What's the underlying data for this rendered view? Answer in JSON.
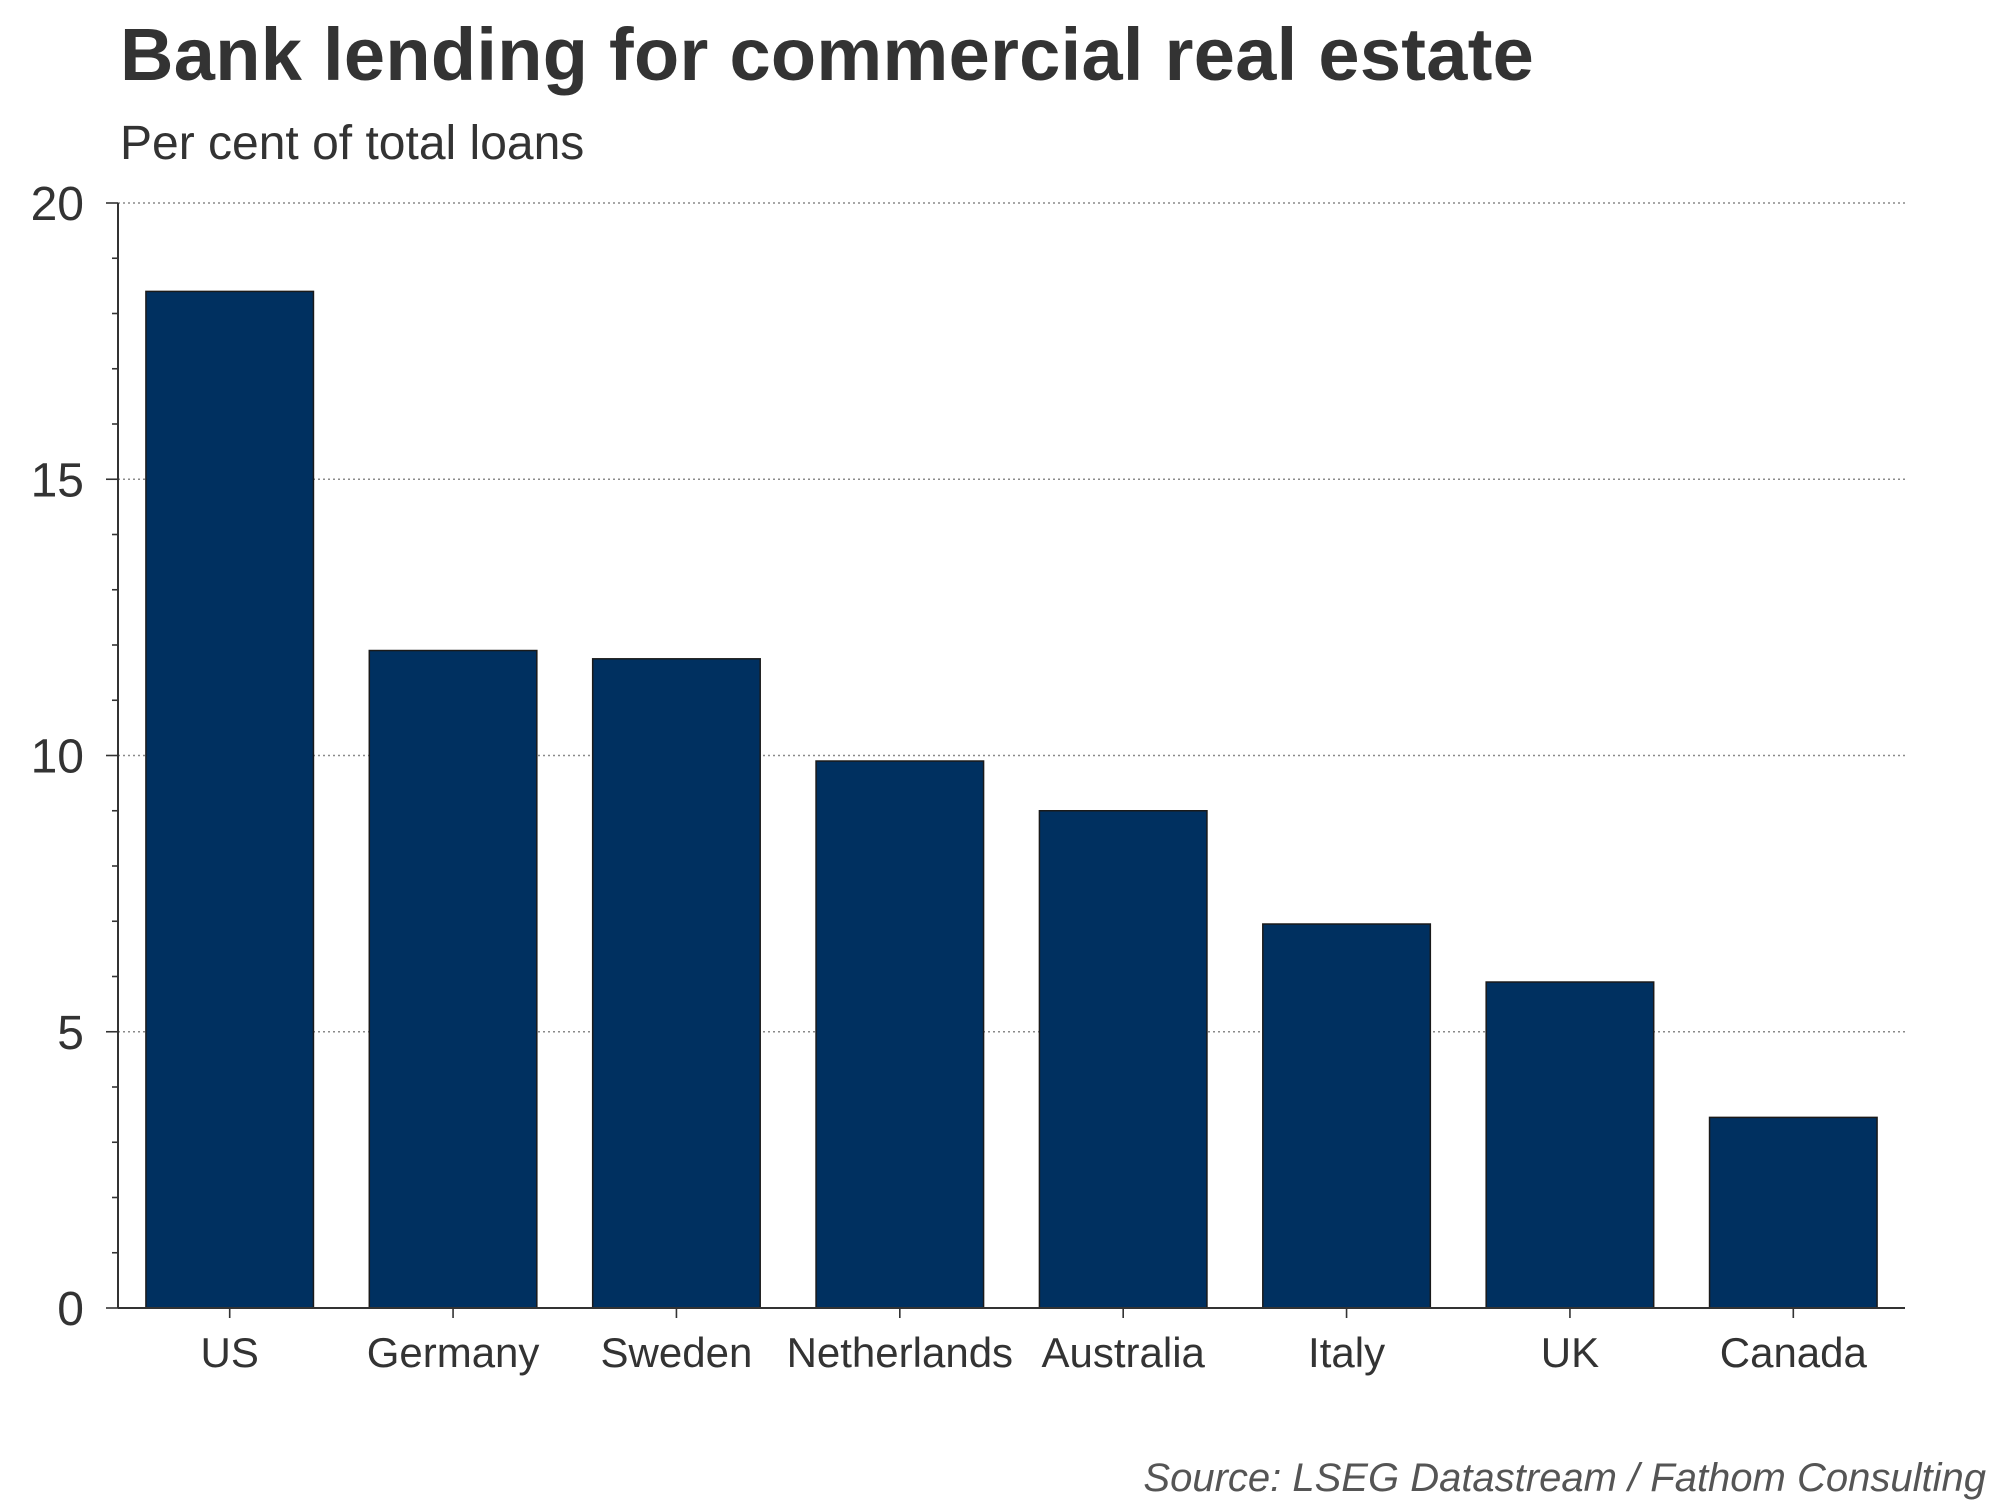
{
  "chart_data": {
    "type": "bar",
    "title": "Bank lending for commercial real estate",
    "subtitle": "Per cent of total loans",
    "source": "Source: LSEG Datastream / Fathom Consulting",
    "categories": [
      "US",
      "Germany",
      "Sweden",
      "Netherlands",
      "Australia",
      "Italy",
      "UK",
      "Canada"
    ],
    "values": [
      18.4,
      11.9,
      11.75,
      9.9,
      9.0,
      6.95,
      5.9,
      3.45
    ],
    "ylim": [
      0,
      20
    ],
    "yticks": [
      "0",
      "5",
      "10",
      "15",
      "20"
    ],
    "grid": true,
    "bar_color": "#003060"
  }
}
